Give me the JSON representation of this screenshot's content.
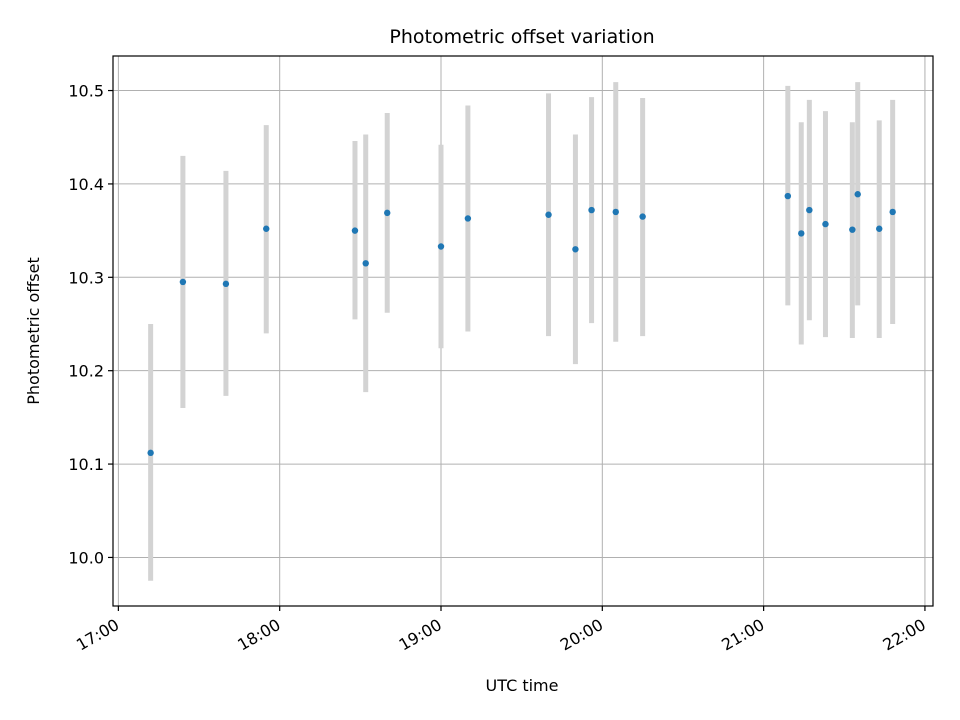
{
  "chart_data": {
    "type": "scatter",
    "title": "Photometric offset variation",
    "xlabel": "UTC time",
    "ylabel": "Photometric offset",
    "x_ticks": [
      "17:00",
      "18:00",
      "19:00",
      "20:00",
      "21:00",
      "22:00"
    ],
    "y_ticks": [
      "10.0",
      "10.1",
      "10.2",
      "10.3",
      "10.4",
      "10.5"
    ],
    "xlim": [
      "16:58",
      "22:03"
    ],
    "ylim": [
      9.948,
      10.537
    ],
    "grid": true,
    "colors": {
      "point": "#1f77b4",
      "errorbar": "#d3d3d3",
      "grid": "#b0b0b0"
    },
    "series": [
      {
        "points": [
          {
            "x": "17:12",
            "y": 10.112,
            "ylow": 9.975,
            "yhigh": 10.25
          },
          {
            "x": "17:24",
            "y": 10.295,
            "ylow": 10.16,
            "yhigh": 10.43
          },
          {
            "x": "17:40",
            "y": 10.293,
            "ylow": 10.173,
            "yhigh": 10.414
          },
          {
            "x": "17:55",
            "y": 10.352,
            "ylow": 10.24,
            "yhigh": 10.463
          },
          {
            "x": "18:28",
            "y": 10.35,
            "ylow": 10.255,
            "yhigh": 10.446
          },
          {
            "x": "18:32",
            "y": 10.315,
            "ylow": 10.177,
            "yhigh": 10.453
          },
          {
            "x": "18:40",
            "y": 10.369,
            "ylow": 10.262,
            "yhigh": 10.476
          },
          {
            "x": "19:00",
            "y": 10.333,
            "ylow": 10.224,
            "yhigh": 10.442
          },
          {
            "x": "19:10",
            "y": 10.363,
            "ylow": 10.242,
            "yhigh": 10.484
          },
          {
            "x": "19:40",
            "y": 10.367,
            "ylow": 10.237,
            "yhigh": 10.497
          },
          {
            "x": "19:50",
            "y": 10.33,
            "ylow": 10.207,
            "yhigh": 10.453
          },
          {
            "x": "19:56",
            "y": 10.372,
            "ylow": 10.251,
            "yhigh": 10.493
          },
          {
            "x": "20:05",
            "y": 10.37,
            "ylow": 10.231,
            "yhigh": 10.509
          },
          {
            "x": "20:15",
            "y": 10.365,
            "ylow": 10.237,
            "yhigh": 10.492
          },
          {
            "x": "21:09",
            "y": 10.387,
            "ylow": 10.27,
            "yhigh": 10.505
          },
          {
            "x": "21:14",
            "y": 10.347,
            "ylow": 10.228,
            "yhigh": 10.466
          },
          {
            "x": "21:17",
            "y": 10.372,
            "ylow": 10.254,
            "yhigh": 10.49
          },
          {
            "x": "21:23",
            "y": 10.357,
            "ylow": 10.236,
            "yhigh": 10.478
          },
          {
            "x": "21:33",
            "y": 10.351,
            "ylow": 10.235,
            "yhigh": 10.466
          },
          {
            "x": "21:35",
            "y": 10.389,
            "ylow": 10.27,
            "yhigh": 10.509
          },
          {
            "x": "21:43",
            "y": 10.352,
            "ylow": 10.235,
            "yhigh": 10.468
          },
          {
            "x": "21:48",
            "y": 10.37,
            "ylow": 10.25,
            "yhigh": 10.49
          }
        ]
      }
    ]
  }
}
